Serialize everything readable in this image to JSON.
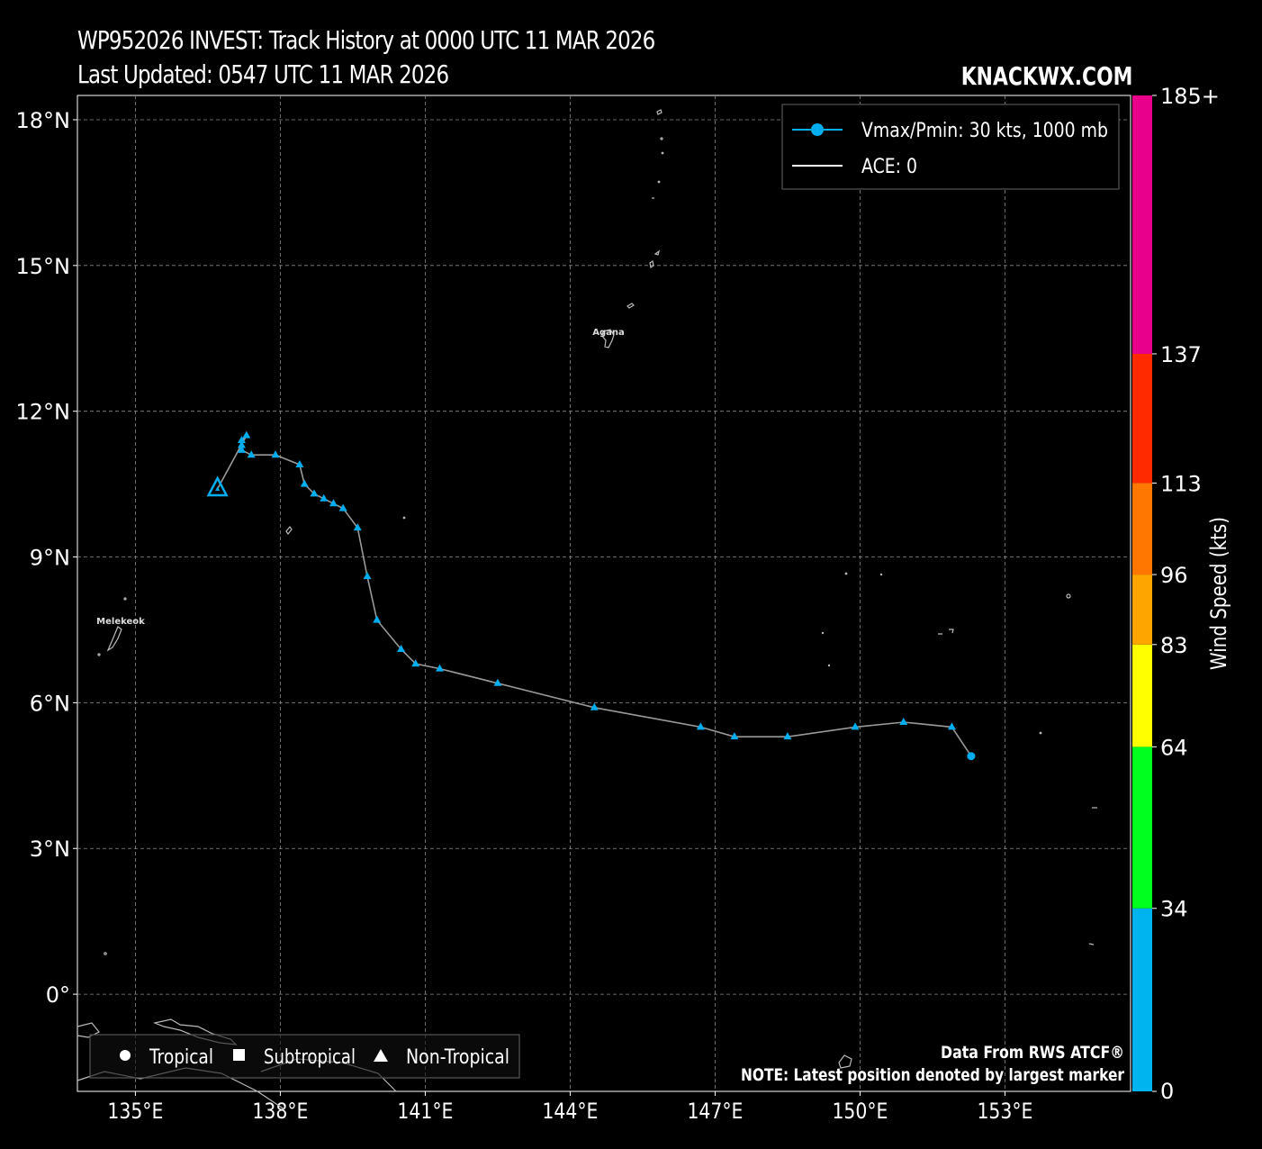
{
  "header": {
    "title_line1": "WP952026 INVEST: Track History at 0000 UTC 11 MAR 2026",
    "title_line2": "Last Updated: 0547 UTC 11 MAR 2026",
    "brand": "KNACKWX.COM"
  },
  "map": {
    "lon_range": [
      133.8,
      155.6
    ],
    "lat_range": [
      -2.0,
      18.5
    ],
    "lat_ticks": [
      {
        "value": 18,
        "label": "18°N"
      },
      {
        "value": 15,
        "label": "15°N"
      },
      {
        "value": 12,
        "label": "12°N"
      },
      {
        "value": 9,
        "label": "9°N"
      },
      {
        "value": 6,
        "label": "6°N"
      },
      {
        "value": 3,
        "label": "3°N"
      },
      {
        "value": 0,
        "label": "0°"
      }
    ],
    "lon_ticks": [
      {
        "value": 135,
        "label": "135°E"
      },
      {
        "value": 138,
        "label": "138°E"
      },
      {
        "value": 141,
        "label": "141°E"
      },
      {
        "value": 144,
        "label": "144°E"
      },
      {
        "value": 147,
        "label": "147°E"
      },
      {
        "value": 150,
        "label": "150°E"
      },
      {
        "value": 153,
        "label": "153°E"
      }
    ],
    "grid": true,
    "places": [
      {
        "name": "Agana",
        "lon": 144.75,
        "lat": 13.48
      },
      {
        "name": "Melekeok",
        "lon": 134.6,
        "lat": 7.5
      }
    ]
  },
  "track": {
    "color": "#00aeef",
    "points": [
      {
        "lon": 152.3,
        "lat": 4.9,
        "type": "tropical"
      },
      {
        "lon": 151.9,
        "lat": 5.5,
        "type": "non-tropical"
      },
      {
        "lon": 150.9,
        "lat": 5.6,
        "type": "non-tropical"
      },
      {
        "lon": 149.9,
        "lat": 5.5,
        "type": "non-tropical"
      },
      {
        "lon": 148.5,
        "lat": 5.3,
        "type": "non-tropical"
      },
      {
        "lon": 147.4,
        "lat": 5.3,
        "type": "non-tropical"
      },
      {
        "lon": 146.7,
        "lat": 5.5,
        "type": "non-tropical"
      },
      {
        "lon": 144.5,
        "lat": 5.9,
        "type": "non-tropical"
      },
      {
        "lon": 142.5,
        "lat": 6.4,
        "type": "non-tropical"
      },
      {
        "lon": 141.3,
        "lat": 6.7,
        "type": "non-tropical"
      },
      {
        "lon": 140.8,
        "lat": 6.8,
        "type": "non-tropical"
      },
      {
        "lon": 140.5,
        "lat": 7.1,
        "type": "non-tropical"
      },
      {
        "lon": 140.0,
        "lat": 7.7,
        "type": "non-tropical"
      },
      {
        "lon": 139.8,
        "lat": 8.6,
        "type": "non-tropical"
      },
      {
        "lon": 139.6,
        "lat": 9.6,
        "type": "non-tropical"
      },
      {
        "lon": 139.3,
        "lat": 10.0,
        "type": "non-tropical"
      },
      {
        "lon": 139.1,
        "lat": 10.1,
        "type": "non-tropical"
      },
      {
        "lon": 138.9,
        "lat": 10.2,
        "type": "non-tropical"
      },
      {
        "lon": 138.7,
        "lat": 10.3,
        "type": "non-tropical"
      },
      {
        "lon": 138.5,
        "lat": 10.5,
        "type": "non-tropical"
      },
      {
        "lon": 138.4,
        "lat": 10.9,
        "type": "non-tropical"
      },
      {
        "lon": 137.9,
        "lat": 11.1,
        "type": "non-tropical"
      },
      {
        "lon": 137.4,
        "lat": 11.1,
        "type": "non-tropical"
      },
      {
        "lon": 137.2,
        "lat": 11.2,
        "type": "non-tropical"
      },
      {
        "lon": 137.2,
        "lat": 11.3,
        "type": "non-tropical"
      },
      {
        "lon": 137.2,
        "lat": 11.4,
        "type": "non-tropical"
      },
      {
        "lon": 137.3,
        "lat": 11.5,
        "type": "non-tropical"
      },
      {
        "lon": 136.7,
        "lat": 10.4,
        "type": "non-tropical",
        "latest": true
      }
    ]
  },
  "legend_top": {
    "items": [
      {
        "label": "Vmax/Pmin: 30 kts, 1000 mb",
        "color": "#00aeef",
        "marker": "circle"
      },
      {
        "label": "ACE: 0",
        "color": "#ffffff",
        "marker": "line"
      }
    ]
  },
  "legend_bottom": {
    "items": [
      {
        "label": "Tropical",
        "symbol": "circle"
      },
      {
        "label": "Subtropical",
        "symbol": "square"
      },
      {
        "label": "Non-Tropical",
        "symbol": "triangle"
      }
    ]
  },
  "credits": {
    "line1": "Data From RWS ATCF®",
    "line2": "NOTE: Latest position denoted by largest marker"
  },
  "colorbar": {
    "title": "Wind Speed (kts)",
    "min": 0,
    "max": 185,
    "segments": [
      {
        "from": 0,
        "to": 34,
        "color": "#00b4f0"
      },
      {
        "from": 34,
        "to": 64,
        "color": "#00ff1e"
      },
      {
        "from": 64,
        "to": 83,
        "color": "#ffff00"
      },
      {
        "from": 83,
        "to": 96,
        "color": "#ffa500"
      },
      {
        "from": 96,
        "to": 113,
        "color": "#ff7700"
      },
      {
        "from": 113,
        "to": 137,
        "color": "#ff2a00"
      },
      {
        "from": 137,
        "to": 185,
        "color": "#e8008c"
      }
    ],
    "ticks": [
      {
        "value": 0,
        "label": "0"
      },
      {
        "value": 34,
        "label": "34"
      },
      {
        "value": 64,
        "label": "64"
      },
      {
        "value": 83,
        "label": "83"
      },
      {
        "value": 96,
        "label": "96"
      },
      {
        "value": 113,
        "label": "113"
      },
      {
        "value": 137,
        "label": "137"
      },
      {
        "value": 185,
        "label": "185+"
      }
    ]
  }
}
